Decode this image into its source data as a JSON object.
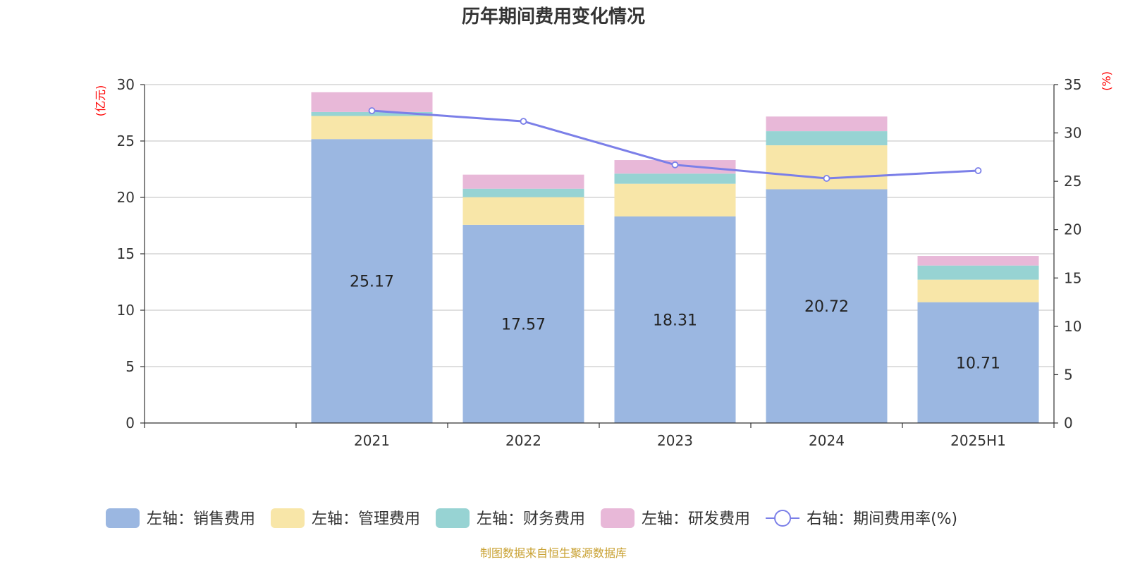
{
  "chart_data": {
    "type": "bar",
    "title": "历年期间费用变化情况",
    "categories": [
      "",
      "2021",
      "2022",
      "2023",
      "2024",
      "2025H1"
    ],
    "left_axis": {
      "unit_label": "(亿元)",
      "ylim": [
        0,
        30
      ],
      "ticks": [
        "0",
        "5",
        "10",
        "15",
        "20",
        "25",
        "30"
      ]
    },
    "right_axis": {
      "unit_label": "(%)",
      "ylim": [
        0,
        35
      ],
      "ticks": [
        "0",
        "5",
        "10",
        "15",
        "20",
        "25",
        "30",
        "35"
      ]
    },
    "series": [
      {
        "name": "左轴：销售费用",
        "axis": "left",
        "stack": true,
        "color": "#9bb7e1",
        "values": [
          null,
          25.17,
          17.57,
          18.31,
          20.72,
          10.71
        ],
        "labels": [
          "",
          "25.17",
          "17.57",
          "18.31",
          "20.72",
          "10.71"
        ]
      },
      {
        "name": "左轴：管理费用",
        "axis": "left",
        "stack": true,
        "color": "#f8e6a8",
        "values": [
          null,
          2.05,
          2.45,
          2.9,
          3.9,
          2.0
        ]
      },
      {
        "name": "左轴：财务费用",
        "axis": "left",
        "stack": true,
        "color": "#97d3d3",
        "values": [
          null,
          0.35,
          0.75,
          0.9,
          1.25,
          1.25
        ]
      },
      {
        "name": "左轴：研发费用",
        "axis": "left",
        "stack": true,
        "color": "#e8b8d8",
        "values": [
          null,
          1.75,
          1.25,
          1.2,
          1.3,
          0.85
        ]
      },
      {
        "name": "右轴：期间费用率(%)",
        "axis": "right",
        "type": "line",
        "color": "#7b7fe8",
        "values": [
          null,
          32.3,
          31.2,
          26.7,
          25.3,
          26.1
        ]
      }
    ],
    "legend_position": "bottom"
  },
  "source": "制图数据来自恒生聚源数据库"
}
